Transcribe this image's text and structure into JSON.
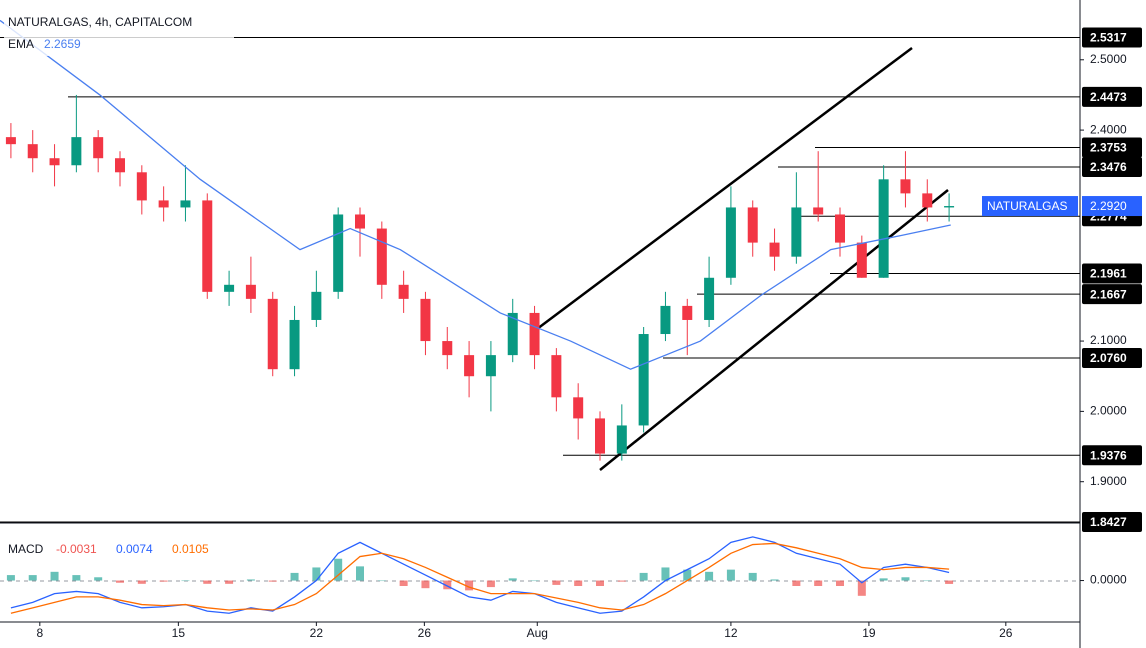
{
  "header": {
    "symbol": "NATURALGAS, 4h, CAPITALCOM",
    "ema_label": "EMA",
    "ema_value": 2.2659
  },
  "chart_data": [
    {
      "type": "candlestick",
      "x": [
        0,
        4,
        8,
        12,
        16,
        20,
        24,
        28,
        32,
        36,
        40,
        44,
        48,
        52,
        56,
        60,
        64,
        68,
        72,
        76,
        80,
        84,
        88,
        92,
        96,
        100,
        104,
        108,
        112,
        116,
        120,
        124,
        128,
        132,
        136,
        140,
        144,
        148,
        152,
        156,
        160,
        164,
        168,
        172
      ],
      "open": [
        2.39,
        2.38,
        2.36,
        2.35,
        2.39,
        2.36,
        2.34,
        2.3,
        2.29,
        2.3,
        2.17,
        2.18,
        2.16,
        2.06,
        2.13,
        2.17,
        2.28,
        2.26,
        2.18,
        2.16,
        2.1,
        2.08,
        2.05,
        2.08,
        2.14,
        2.08,
        2.02,
        1.99,
        1.94,
        1.98,
        2.11,
        2.15,
        2.13,
        2.19,
        2.29,
        2.24,
        2.22,
        2.29,
        2.28,
        2.24,
        2.19,
        2.33,
        2.31,
        2.29
      ],
      "high": [
        2.41,
        2.4,
        2.38,
        2.45,
        2.4,
        2.37,
        2.35,
        2.32,
        2.35,
        2.31,
        2.2,
        2.22,
        2.17,
        2.15,
        2.2,
        2.29,
        2.29,
        2.27,
        2.2,
        2.17,
        2.12,
        2.1,
        2.1,
        2.16,
        2.15,
        2.09,
        2.04,
        2.0,
        2.01,
        2.12,
        2.17,
        2.16,
        2.22,
        2.32,
        2.3,
        2.26,
        2.34,
        2.37,
        2.29,
        2.25,
        2.35,
        2.37,
        2.33,
        2.31
      ],
      "low": [
        2.36,
        2.34,
        2.32,
        2.34,
        2.34,
        2.32,
        2.28,
        2.27,
        2.27,
        2.16,
        2.15,
        2.14,
        2.05,
        2.05,
        2.12,
        2.16,
        2.22,
        2.16,
        2.14,
        2.08,
        2.06,
        2.02,
        2.0,
        2.07,
        2.06,
        2.0,
        1.96,
        1.93,
        1.93,
        1.97,
        2.1,
        2.08,
        2.12,
        2.18,
        2.22,
        2.2,
        2.21,
        2.27,
        2.22,
        2.19,
        2.19,
        2.29,
        2.27,
        2.27
      ],
      "close": [
        2.38,
        2.36,
        2.35,
        2.39,
        2.36,
        2.34,
        2.3,
        2.29,
        2.3,
        2.17,
        2.18,
        2.16,
        2.06,
        2.13,
        2.17,
        2.28,
        2.26,
        2.18,
        2.16,
        2.1,
        2.08,
        2.05,
        2.08,
        2.14,
        2.08,
        2.02,
        1.99,
        1.94,
        1.98,
        2.11,
        2.15,
        2.13,
        2.19,
        2.29,
        2.24,
        2.22,
        2.29,
        2.28,
        2.24,
        2.19,
        2.33,
        2.31,
        2.29,
        2.292
      ],
      "up_color": "#089981",
      "down_color": "#f23645",
      "xlim": [
        -2,
        196
      ],
      "ylim": [
        1.8427,
        2.585
      ],
      "xticks": [
        {
          "value": 5.3,
          "label": "8"
        },
        {
          "value": 30.7,
          "label": "15"
        },
        {
          "value": 56,
          "label": "22"
        },
        {
          "value": 75.8,
          "label": "26"
        },
        {
          "value": 96.5,
          "label": "Aug"
        },
        {
          "value": 132,
          "label": "12"
        },
        {
          "value": 157.3,
          "label": "19"
        },
        {
          "value": 182.4,
          "label": "26"
        }
      ],
      "yticks": [
        {
          "value": 2.5,
          "label": "2.5000"
        },
        {
          "value": 2.4,
          "label": "2.4000"
        },
        {
          "value": 2.1,
          "label": "2.1000"
        },
        {
          "value": 2.0,
          "label": "2.0000"
        },
        {
          "value": 1.9,
          "label": "1.9000"
        }
      ],
      "ema": {
        "name": "EMA",
        "color": "#4a7ff0",
        "x": [
          -2,
          16.3,
          34.7,
          53,
          62.2,
          71.4,
          89.7,
          102.6,
          113.6,
          126.4,
          137.5,
          150.3,
          163.1,
          172.3
        ],
        "values": [
          2.556,
          2.45,
          2.33,
          2.23,
          2.26,
          2.23,
          2.14,
          2.1,
          2.06,
          2.1,
          2.165,
          2.23,
          2.25,
          2.265
        ]
      },
      "levels": [
        2.5317,
        2.4473,
        2.3753,
        2.3476,
        2.2774,
        2.1961,
        2.1667,
        {
          "value": 2.076,
          "label": "2.0760"
        },
        1.9376,
        1.8427
      ],
      "last_price": {
        "name": "NATURALGAS",
        "value": {
          "value": 2.292,
          "label": "2.2920"
        },
        "color": "#2962ff"
      }
    },
    {
      "type": "macd",
      "title": "MACD",
      "histogram_value": -0.0031,
      "macd_value": 0.0074,
      "signal_value": 0.0105,
      "x": [
        0,
        4,
        8,
        12,
        16,
        20,
        24,
        28,
        32,
        36,
        40,
        44,
        48,
        52,
        56,
        60,
        64,
        68,
        72,
        76,
        80,
        84,
        88,
        92,
        96,
        100,
        104,
        108,
        112,
        116,
        120,
        124,
        128,
        132,
        136,
        140,
        144,
        148,
        152,
        156,
        160,
        164,
        168,
        172
      ],
      "ylim": [
        -0.038,
        0.05
      ],
      "yticks": [
        {
          "value": 0,
          "label": "0.0000"
        }
      ],
      "series": [
        {
          "name": "Histogram",
          "color": "#ef5350",
          "up_color": "#26a69a",
          "values": [
            0.005,
            0.005,
            0.008,
            0.005,
            0.003,
            -0.002,
            -0.003,
            -0.001,
            0,
            -0.003,
            -0.003,
            0.001,
            -0.001,
            0.007,
            0.012,
            0.02,
            0.013,
            0,
            -0.005,
            -0.007,
            -0.008,
            -0.009,
            -0.006,
            0.002,
            0,
            -0.004,
            -0.005,
            -0.005,
            -0.001,
            0.007,
            0.012,
            0.01,
            0.008,
            0.01,
            0.007,
            0.001,
            -0.005,
            -0.005,
            -0.005,
            -0.014,
            0.002,
            0.003,
            0,
            -0.0031
          ]
        },
        {
          "name": "MACD",
          "color": "#2962ff",
          "values": [
            -0.025,
            -0.02,
            -0.012,
            -0.01,
            -0.012,
            -0.02,
            -0.025,
            -0.024,
            -0.022,
            -0.028,
            -0.03,
            -0.025,
            -0.028,
            -0.015,
            0.0,
            0.025,
            0.035,
            0.025,
            0.015,
            0.005,
            -0.005,
            -0.015,
            -0.018,
            -0.01,
            -0.012,
            -0.02,
            -0.025,
            -0.03,
            -0.028,
            -0.015,
            0.0,
            0.01,
            0.02,
            0.035,
            0.04,
            0.035,
            0.025,
            0.02,
            0.015,
            -0.002,
            0.012,
            0.015,
            0.012,
            0.0074
          ]
        },
        {
          "name": "Signal",
          "color": "#ff6d00",
          "values": [
            -0.03,
            -0.025,
            -0.02,
            -0.015,
            -0.015,
            -0.018,
            -0.022,
            -0.023,
            -0.022,
            -0.025,
            -0.027,
            -0.026,
            -0.027,
            -0.022,
            -0.012,
            0.005,
            0.022,
            0.025,
            0.02,
            0.012,
            0.003,
            -0.006,
            -0.012,
            -0.012,
            -0.012,
            -0.016,
            -0.02,
            -0.025,
            -0.027,
            -0.022,
            -0.012,
            0.0,
            0.012,
            0.025,
            0.033,
            0.034,
            0.03,
            0.025,
            0.02,
            0.012,
            0.01,
            0.012,
            0.012,
            0.0105
          ]
        }
      ]
    }
  ]
}
